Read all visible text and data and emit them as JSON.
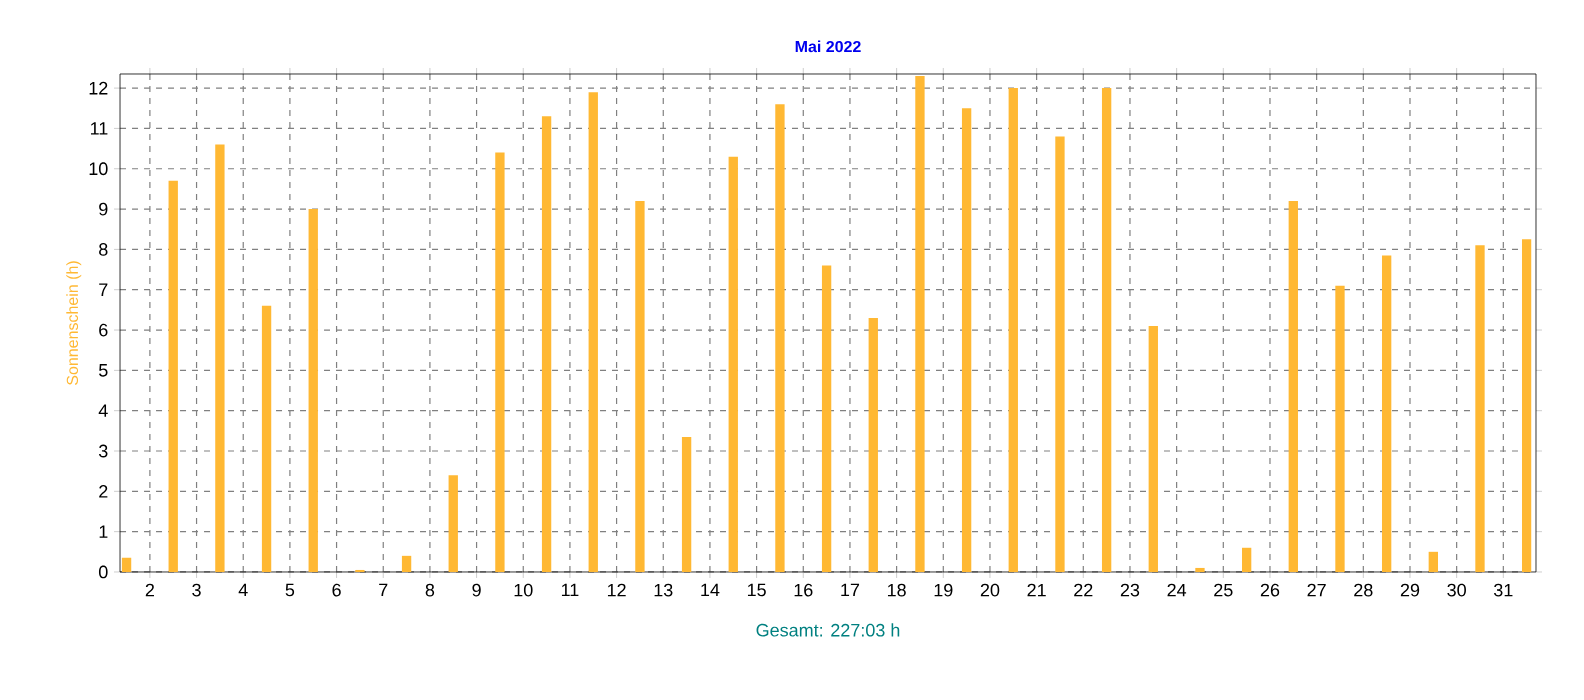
{
  "chart_data": {
    "type": "bar",
    "title": "Mai 2022",
    "ylabel": "Sonnenschein  (h)",
    "x": [
      1.5,
      2.5,
      3.5,
      4.5,
      5.5,
      6.5,
      7.5,
      8.5,
      9.5,
      10.5,
      11.5,
      12.5,
      13.5,
      14.5,
      15.5,
      16.5,
      17.5,
      18.5,
      19.5,
      20.5,
      21.5,
      22.5,
      23.5,
      24.5,
      25.5,
      26.5,
      27.5,
      28.5,
      29.5,
      30.5,
      31.5
    ],
    "values": [
      0.35,
      9.7,
      10.6,
      6.6,
      9.0,
      0.05,
      0.4,
      2.4,
      10.4,
      11.3,
      11.9,
      9.2,
      3.35,
      10.3,
      11.6,
      7.6,
      6.3,
      12.3,
      11.5,
      12.0,
      10.8,
      12.0,
      6.1,
      0.1,
      0.6,
      9.2,
      7.1,
      7.85,
      0.5,
      8.1,
      8.25
    ],
    "color": "#ffb833",
    "xlim": [
      1.36,
      31.7
    ],
    "xticks": [
      2,
      3,
      4,
      5,
      6,
      7,
      8,
      9,
      10,
      11,
      12,
      13,
      14,
      15,
      16,
      17,
      18,
      19,
      20,
      21,
      22,
      23,
      24,
      25,
      26,
      27,
      28,
      29,
      30,
      31
    ],
    "ylim": [
      0,
      12.35
    ],
    "yticks": [
      0,
      1,
      2,
      3,
      4,
      5,
      6,
      7,
      8,
      9,
      10,
      11,
      12
    ],
    "grid": true,
    "annotations": [
      "Gesamt: 227:03 h"
    ]
  }
}
